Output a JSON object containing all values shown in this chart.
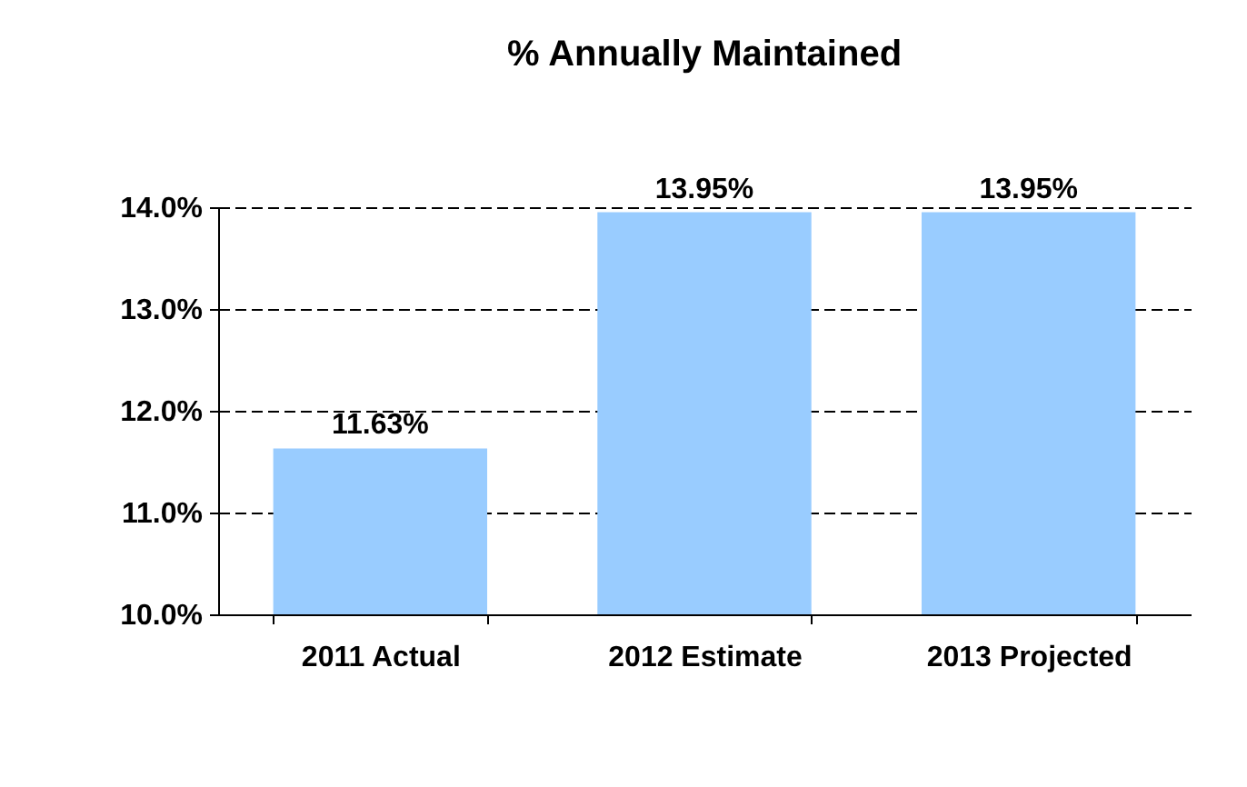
{
  "chart_data": {
    "type": "bar",
    "title": "% Annually Maintained",
    "categories": [
      "2011 Actual",
      "2012 Estimate",
      "2013 Projected"
    ],
    "values": [
      11.63,
      13.95,
      13.95
    ],
    "value_labels": [
      "11.63%",
      "13.95%",
      "13.95%"
    ],
    "color": "#99ccff",
    "ylim": [
      10,
      14
    ],
    "yticks": [
      {
        "value": 10,
        "label": "10.0%"
      },
      {
        "value": 11,
        "label": "11.0%"
      },
      {
        "value": 12,
        "label": "12.0%"
      },
      {
        "value": 13,
        "label": "13.0%"
      },
      {
        "value": 14,
        "label": "14.0%"
      }
    ],
    "grid": "y",
    "line_style": "dashed"
  }
}
